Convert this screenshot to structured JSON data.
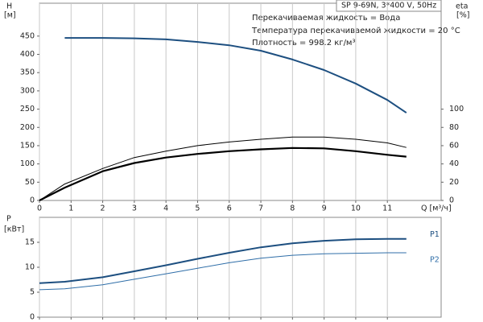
{
  "chart_data": [
    {
      "type": "line",
      "title": "SP 9-69N, 3*400 V, 50Hz",
      "annotations": [
        "Перекачиваемая жидкость = Вода",
        "Температура перекачиваемой жидкости = 20 °C",
        "Плотность = 998.2 кг/м³"
      ],
      "y_label": "H",
      "y_unit": "[м]",
      "y2_label": "eta",
      "y2_unit": "[%]",
      "x_label": "Q [м³/ч]",
      "x": [
        0,
        0.8,
        2,
        3,
        4,
        5,
        6,
        7,
        8,
        9,
        10,
        11,
        11.6
      ],
      "series": [
        {
          "color": "#1d4f80",
          "line_width": 2,
          "values": [
            null,
            445,
            445,
            444,
            441,
            434,
            425,
            410,
            386,
            357,
            320,
            275,
            240
          ]
        },
        {
          "color": "#000000",
          "line_width": 1,
          "axis": "y2",
          "values": [
            0,
            18,
            35,
            47,
            54,
            60,
            64,
            67,
            69.5,
            69.5,
            67,
            63,
            58
          ]
        },
        {
          "color": "#000000",
          "line_width": 2.2,
          "axis": "y2",
          "values": [
            0,
            14,
            32,
            41,
            47,
            51,
            54,
            56,
            57.5,
            57,
            54,
            50,
            48
          ]
        }
      ],
      "xlim": [
        0,
        12.7
      ],
      "xticks": [
        0,
        1,
        2,
        3,
        4,
        5,
        6,
        7,
        8,
        9,
        10,
        11
      ],
      "ylim": [
        0,
        540
      ],
      "yticks": [
        0,
        50,
        100,
        150,
        200,
        250,
        300,
        350,
        400,
        450
      ],
      "y2lim": [
        0,
        216
      ],
      "y2ticks": [
        0,
        20,
        40,
        60,
        80,
        100
      ],
      "grid": "x",
      "xtick_labels": true
    },
    {
      "type": "line",
      "y_label": "P",
      "y_unit": "[кВт]",
      "x": [
        0,
        0.8,
        2,
        3,
        4,
        5,
        6,
        7,
        8,
        9,
        10,
        11,
        11.6
      ],
      "series": [
        {
          "name": "P1",
          "color": "#1d4f80",
          "line_width": 2,
          "values": [
            6.8,
            7.1,
            8,
            9.2,
            10.4,
            11.7,
            12.9,
            14,
            14.8,
            15.3,
            15.6,
            15.7,
            15.7
          ]
        },
        {
          "name": "P2",
          "color": "#2f6ea8",
          "line_width": 1,
          "values": [
            5.5,
            5.7,
            6.5,
            7.6,
            8.7,
            9.8,
            10.9,
            11.8,
            12.4,
            12.7,
            12.8,
            12.9,
            12.9
          ]
        }
      ],
      "xlim": [
        0,
        12.7
      ],
      "xticks": [
        0,
        1,
        2,
        3,
        4,
        5,
        6,
        7,
        8,
        9,
        10,
        11
      ],
      "ylim": [
        0,
        20
      ],
      "yticks": [
        0,
        5,
        10,
        15
      ],
      "grid": "x",
      "xtick_labels": false
    }
  ]
}
